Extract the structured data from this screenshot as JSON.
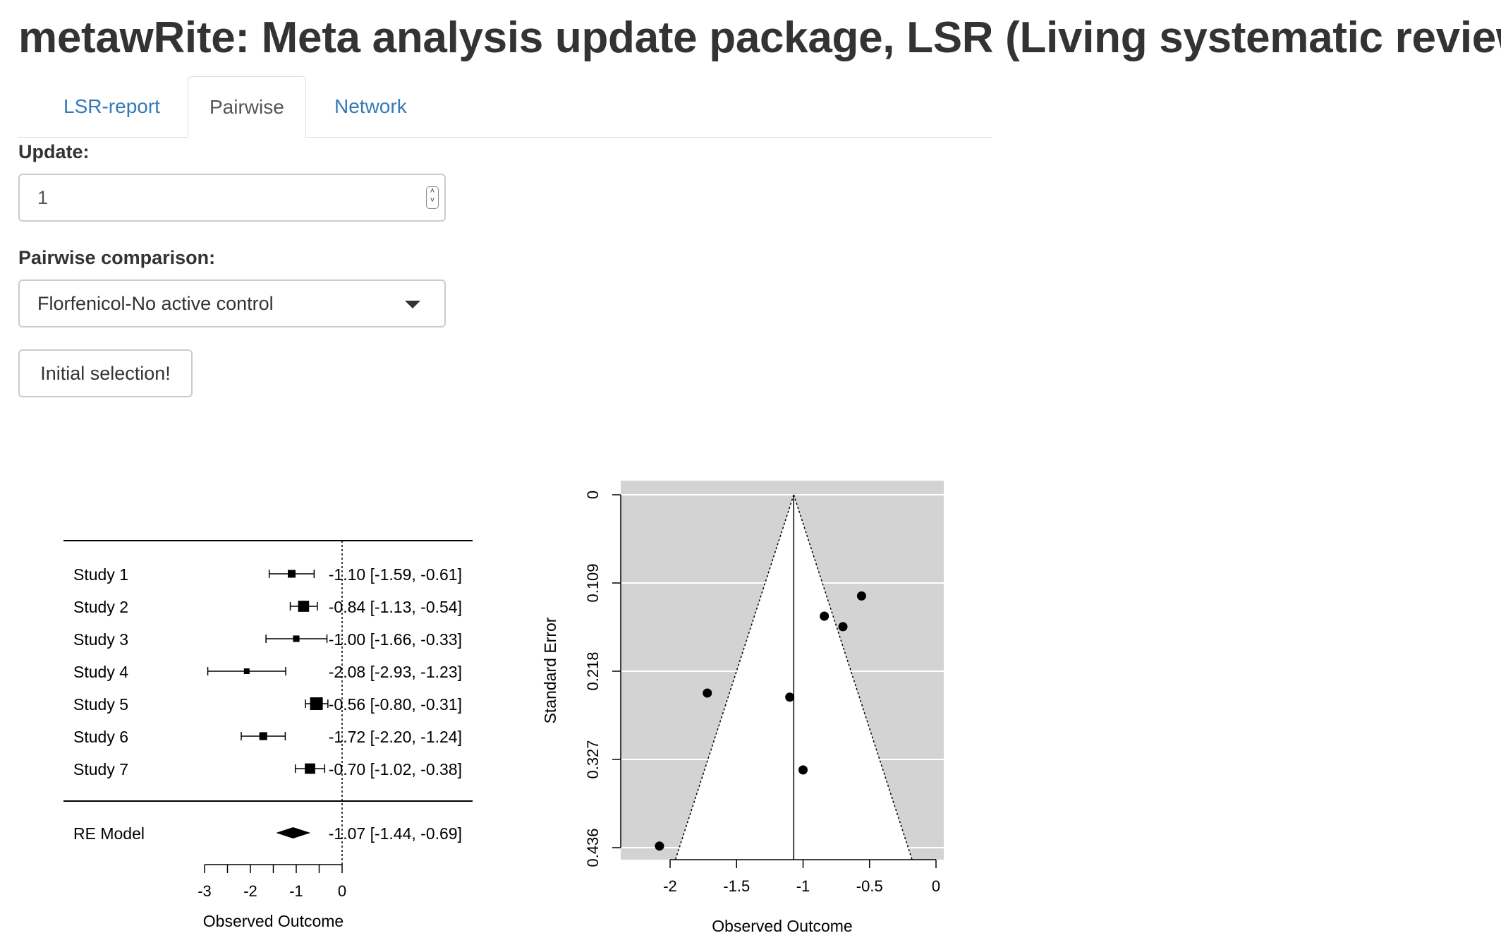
{
  "app": {
    "title": "metawRite: Meta analysis update package, LSR (Living systematic review)"
  },
  "tabs": [
    {
      "label": "LSR-report",
      "active": false
    },
    {
      "label": "Pairwise",
      "active": true
    },
    {
      "label": "Network",
      "active": false
    }
  ],
  "controls": {
    "update_label": "Update:",
    "update_value": "1",
    "comparison_label": "Pairwise comparison:",
    "comparison_value": "Florfenicol-No active control",
    "initial_button": "Initial selection!"
  },
  "colors": {
    "link": "#337ab7",
    "funnel_bg": "#d3d3d3"
  },
  "chart_data": [
    {
      "type": "forest",
      "studies": [
        {
          "label": "Study 1",
          "estimate": -1.1,
          "ci": [
            -1.59,
            -0.61
          ],
          "text": "-1.10 [-1.59, -0.61]"
        },
        {
          "label": "Study 2",
          "estimate": -0.84,
          "ci": [
            -1.13,
            -0.54
          ],
          "text": "-0.84 [-1.13, -0.54]"
        },
        {
          "label": "Study 3",
          "estimate": -1.0,
          "ci": [
            -1.66,
            -0.33
          ],
          "text": "-1.00 [-1.66, -0.33]"
        },
        {
          "label": "Study 4",
          "estimate": -2.08,
          "ci": [
            -2.93,
            -1.23
          ],
          "text": "-2.08 [-2.93, -1.23]"
        },
        {
          "label": "Study 5",
          "estimate": -0.56,
          "ci": [
            -0.8,
            -0.31
          ],
          "text": "-0.56 [-0.80, -0.31]"
        },
        {
          "label": "Study 6",
          "estimate": -1.72,
          "ci": [
            -2.2,
            -1.24
          ],
          "text": "-1.72 [-2.20, -1.24]"
        },
        {
          "label": "Study 7",
          "estimate": -0.7,
          "ci": [
            -1.02,
            -0.38
          ],
          "text": "-0.70 [-1.02, -0.38]"
        }
      ],
      "summary": {
        "label": "RE Model",
        "estimate": -1.07,
        "ci": [
          -1.44,
          -0.69
        ],
        "text": "-1.07 [-1.44, -0.69]"
      },
      "xlabel": "Observed Outcome",
      "xticks": [
        -3,
        -2,
        -1,
        0
      ],
      "xtick_labels": [
        "-3",
        "-2",
        "-1",
        "0"
      ],
      "xlim": [
        -3,
        0
      ],
      "reference_line": 0
    },
    {
      "type": "scatter",
      "subtype": "funnel",
      "points": [
        {
          "x": -1.1,
          "y": 0.25
        },
        {
          "x": -0.84,
          "y": 0.15
        },
        {
          "x": -1.0,
          "y": 0.34
        },
        {
          "x": -2.08,
          "y": 0.434
        },
        {
          "x": -0.56,
          "y": 0.125
        },
        {
          "x": -1.72,
          "y": 0.245
        },
        {
          "x": -0.7,
          "y": 0.163
        }
      ],
      "center": -1.07,
      "xlabel": "Observed Outcome",
      "ylabel": "Standard Error",
      "xticks": [
        -2,
        -1.5,
        -1,
        -0.5,
        0
      ],
      "xtick_labels": [
        "-2",
        "-1.5",
        "-1",
        "-0.5",
        "0"
      ],
      "yticks": [
        0,
        0.109,
        0.218,
        0.327,
        0.436
      ],
      "ytick_labels": [
        "0",
        "0.109",
        "0.218",
        "0.327",
        "0.436"
      ],
      "xlim": [
        -2.37,
        0.07
      ],
      "ylim": [
        0,
        0.454
      ],
      "y_reversed": true,
      "grid": true
    }
  ]
}
